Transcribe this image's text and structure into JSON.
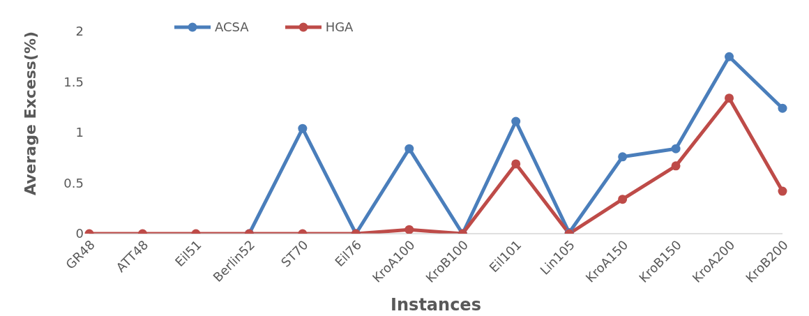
{
  "chart_data": {
    "type": "line",
    "xlabel": "Instances",
    "ylabel": "Average Excess(%)",
    "categories": [
      "GR48",
      "ATT48",
      "Eil51",
      "Berlin52",
      "ST70",
      "Eil76",
      "KroA100",
      "KroB100",
      "Eil101",
      "Lin105",
      "KroA150",
      "KroB150",
      "KroA200",
      "KroB200"
    ],
    "series": [
      {
        "name": "ACSA",
        "color": "#4a7ebb",
        "values": [
          null,
          null,
          null,
          0,
          1.04,
          0,
          0.84,
          0,
          1.11,
          0.01,
          0.76,
          0.84,
          1.75,
          1.24
        ]
      },
      {
        "name": "HGA",
        "color": "#be4b48",
        "values": [
          0,
          0,
          0,
          0,
          0,
          0,
          0.04,
          0,
          0.69,
          0,
          0.34,
          0.67,
          1.34,
          0.42
        ]
      }
    ],
    "ylim": [
      0,
      2
    ],
    "yticks": [
      0,
      0.5,
      1,
      1.5,
      2
    ],
    "legend": "top left",
    "marker": "circle",
    "line_style": "solid"
  }
}
